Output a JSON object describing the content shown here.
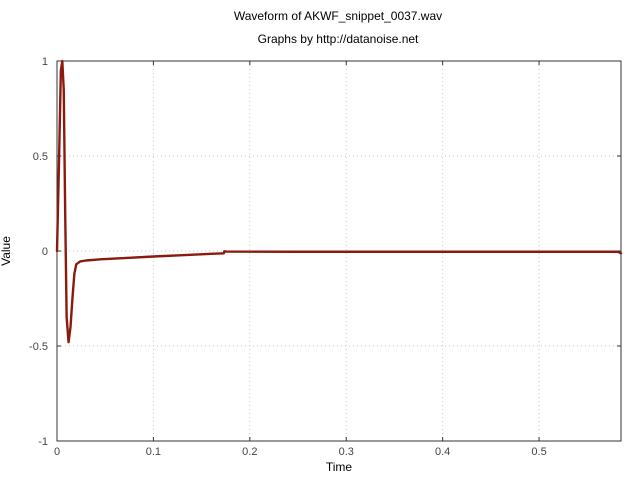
{
  "chart_data": {
    "type": "line",
    "title": "Waveform of AKWF_snippet_0037.wav",
    "subtitle": "Graphs by http://datanoise.net",
    "xlabel": "Time",
    "ylabel": "Value",
    "xlim": [
      0,
      0.585
    ],
    "ylim": [
      -1,
      1
    ],
    "xticks": [
      0,
      0.1,
      0.2,
      0.3,
      0.4,
      0.5
    ],
    "xtick_labels": [
      "0",
      "0.1",
      "0.2",
      "0.3",
      "0.4",
      "0.5"
    ],
    "yticks": [
      1,
      0.5,
      0,
      -0.5,
      -1
    ],
    "ytick_labels": [
      "1",
      "0.5",
      "0",
      "-0.5",
      "-1"
    ],
    "grid": true,
    "series": [
      {
        "color": "#8b1a0e",
        "x": [
          0,
          0.002,
          0.004,
          0.0055,
          0.007,
          0.0085,
          0.01,
          0.012,
          0.014,
          0.016,
          0.018,
          0.02,
          0.024,
          0.03,
          0.045,
          0.07,
          0.1,
          0.13,
          0.16,
          0.173,
          0.1735,
          0.176,
          0.25,
          0.35,
          0.45,
          0.55,
          0.582,
          0.585
        ],
        "y": [
          0,
          0.45,
          0.95,
          1.0,
          0.85,
          0.2,
          -0.35,
          -0.48,
          -0.4,
          -0.25,
          -0.12,
          -0.07,
          -0.055,
          -0.05,
          -0.044,
          -0.037,
          -0.029,
          -0.022,
          -0.015,
          -0.012,
          -0.002,
          -0.003,
          -0.004,
          -0.004,
          -0.004,
          -0.004,
          -0.004,
          -0.012
        ]
      }
    ]
  }
}
